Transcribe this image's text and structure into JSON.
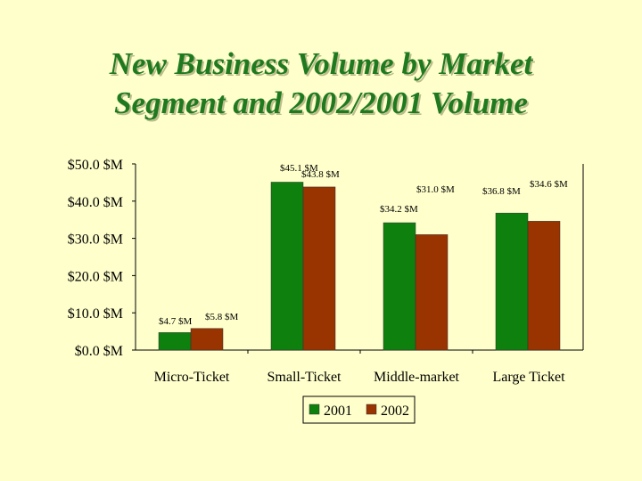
{
  "title": {
    "line1": "New Business Volume by Market",
    "line2": "Segment and 2002/2001 Volume"
  },
  "chart_data": {
    "type": "bar",
    "title": "New Business Volume by Market Segment and 2002/2001 Volume",
    "categories": [
      "Micro-Ticket",
      "Small-Ticket",
      "Middle-market",
      "Large Ticket"
    ],
    "series": [
      {
        "name": "2001",
        "color": "#0E800E",
        "values": [
          4.7,
          45.1,
          34.2,
          36.8
        ],
        "labels": [
          "$4.7 $M",
          "$45.1 $M",
          "$34.2 $M",
          "$36.8 $M"
        ]
      },
      {
        "name": "2002",
        "color": "#993300",
        "values": [
          5.8,
          43.8,
          31.0,
          34.6
        ],
        "labels": [
          "$5.8 $M",
          "$43.8 $M",
          "$31.0 $M",
          "$34.6 $M"
        ]
      }
    ],
    "y_ticks": [
      0,
      10,
      20,
      30,
      40,
      50
    ],
    "y_tick_labels": [
      "$0.0 $M",
      "$10.0 $M",
      "$20.0 $M",
      "$30.0 $M",
      "$40.0 $M",
      "$50.0 $M"
    ],
    "ylim": [
      0,
      50
    ],
    "xlabel": "",
    "ylabel": "",
    "grid": false,
    "legend_position": "bottom"
  }
}
